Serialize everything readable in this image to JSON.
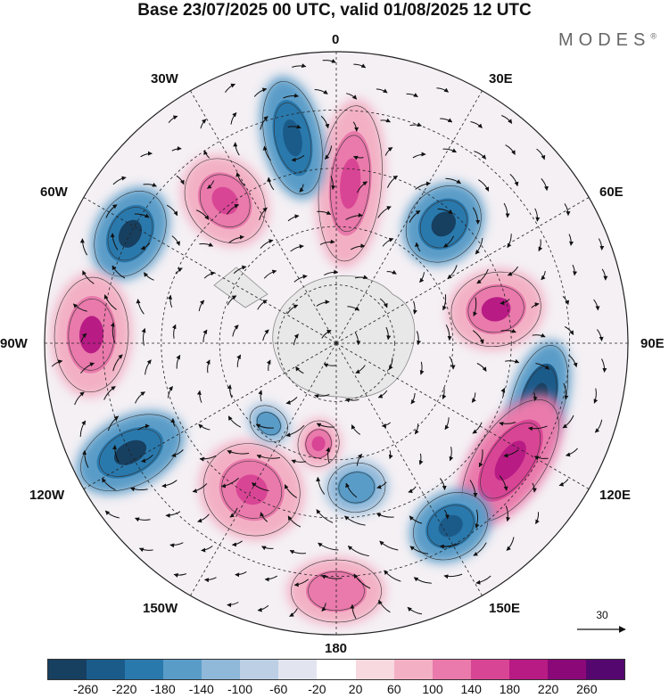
{
  "title": "Base 23/07/2025 00 UTC, valid 01/08/2025 12 UTC",
  "brand": "MODES",
  "brand_mark": "®",
  "longitude_labels": {
    "deg0": "0",
    "deg30E": "30E",
    "deg60E": "60E",
    "deg90E": "90E",
    "deg120E": "120E",
    "deg150E": "150E",
    "deg180": "180",
    "deg150W": "150W",
    "deg120W": "120W",
    "deg90W": "90W",
    "deg60W": "60W",
    "deg30W": "30W"
  },
  "vector_scale": {
    "value": "30"
  },
  "colorbar": {
    "colors": [
      "#173f60",
      "#1b5b8a",
      "#2a79ad",
      "#5a9cc8",
      "#8fb8d9",
      "#bccfe4",
      "#e2e4ef",
      "#ffffff",
      "#f7d9df",
      "#f3b0c5",
      "#e97aab",
      "#d94595",
      "#b81b84",
      "#8a0878",
      "#54086f"
    ],
    "ticks": [
      "-260",
      "-220",
      "-180",
      "-140",
      "-100",
      "-60",
      "-20",
      "20",
      "60",
      "100",
      "140",
      "180",
      "220",
      "260"
    ]
  },
  "map": {
    "blobs": [
      {
        "id": "pos-0",
        "color": "#f3b0c5",
        "r_frac": 0.55,
        "lon": 5,
        "rx": 38,
        "ry": 95,
        "inner": "#e97aab",
        "core": "#d94595"
      },
      {
        "id": "neg-15W",
        "color": "#5a9cc8",
        "r_frac": 0.72,
        "lon": -12,
        "rx": 34,
        "ry": 70,
        "inner": "#2a79ad",
        "core": "#1b5b8a"
      },
      {
        "id": "pos-30W",
        "color": "#f3b0c5",
        "r_frac": 0.62,
        "lon": -38,
        "rx": 45,
        "ry": 55,
        "inner": "#e97aab",
        "core": "#d94595"
      },
      {
        "id": "neg-40E",
        "color": "#5a9cc8",
        "r_frac": 0.55,
        "lon": 42,
        "rx": 42,
        "ry": 50,
        "inner": "#2a79ad",
        "core": "#173f60"
      },
      {
        "id": "neg-60W",
        "color": "#5a9cc8",
        "r_frac": 0.8,
        "lon": -62,
        "rx": 55,
        "ry": 40,
        "inner": "#2a79ad",
        "core": "#173f60"
      },
      {
        "id": "pos-75E",
        "color": "#f3b0c5",
        "r_frac": 0.56,
        "lon": 78,
        "rx": 45,
        "ry": 55,
        "inner": "#e97aab",
        "core": "#b81b84"
      },
      {
        "id": "pos-90W",
        "color": "#f3b0c5",
        "r_frac": 0.84,
        "lon": -88,
        "rx": 70,
        "ry": 45,
        "inner": "#e97aab",
        "core": "#b81b84"
      },
      {
        "id": "neg-105E",
        "color": "#5a9cc8",
        "r_frac": 0.72,
        "lon": 106,
        "rx": 70,
        "ry": 32,
        "inner": "#1b5b8a",
        "core": "#173f60"
      },
      {
        "id": "pos-120E",
        "color": "#e97aab",
        "r_frac": 0.72,
        "lon": 124,
        "rx": 85,
        "ry": 42,
        "inner": "#d94595",
        "core": "#b81b84"
      },
      {
        "id": "neg-120W",
        "color": "#5a9cc8",
        "r_frac": 0.8,
        "lon": -118,
        "rx": 40,
        "ry": 65,
        "inner": "#2a79ad",
        "core": "#173f60"
      },
      {
        "id": "pos-145W",
        "color": "#f3b0c5",
        "r_frac": 0.58,
        "lon": -150,
        "rx": 60,
        "ry": 55,
        "inner": "#e97aab",
        "core": "#d94595"
      },
      {
        "id": "neg-150E",
        "color": "#5a9cc8",
        "r_frac": 0.74,
        "lon": 148,
        "rx": 48,
        "ry": 38,
        "inner": "#2a79ad",
        "core": "#1b5b8a"
      },
      {
        "id": "pos-180",
        "color": "#f3b0c5",
        "r_frac": 0.85,
        "lon": 180,
        "rx": 55,
        "ry": 38,
        "inner": "#e97aab",
        "core": "#e97aab"
      },
      {
        "id": "neg-170E",
        "color": "#8fb8d9",
        "r_frac": 0.5,
        "lon": 172,
        "rx": 35,
        "ry": 30,
        "inner": "#5a9cc8",
        "core": "#5a9cc8"
      },
      {
        "id": "pos-165W",
        "color": "#f3b0c5",
        "r_frac": 0.35,
        "lon": -170,
        "rx": 25,
        "ry": 28,
        "inner": "#e97aab",
        "core": "#d94595"
      },
      {
        "id": "neg-140W",
        "color": "#8fb8d9",
        "r_frac": 0.36,
        "lon": -140,
        "rx": 25,
        "ry": 20,
        "inner": "#5a9cc8",
        "core": "#5a9cc8"
      }
    ]
  }
}
